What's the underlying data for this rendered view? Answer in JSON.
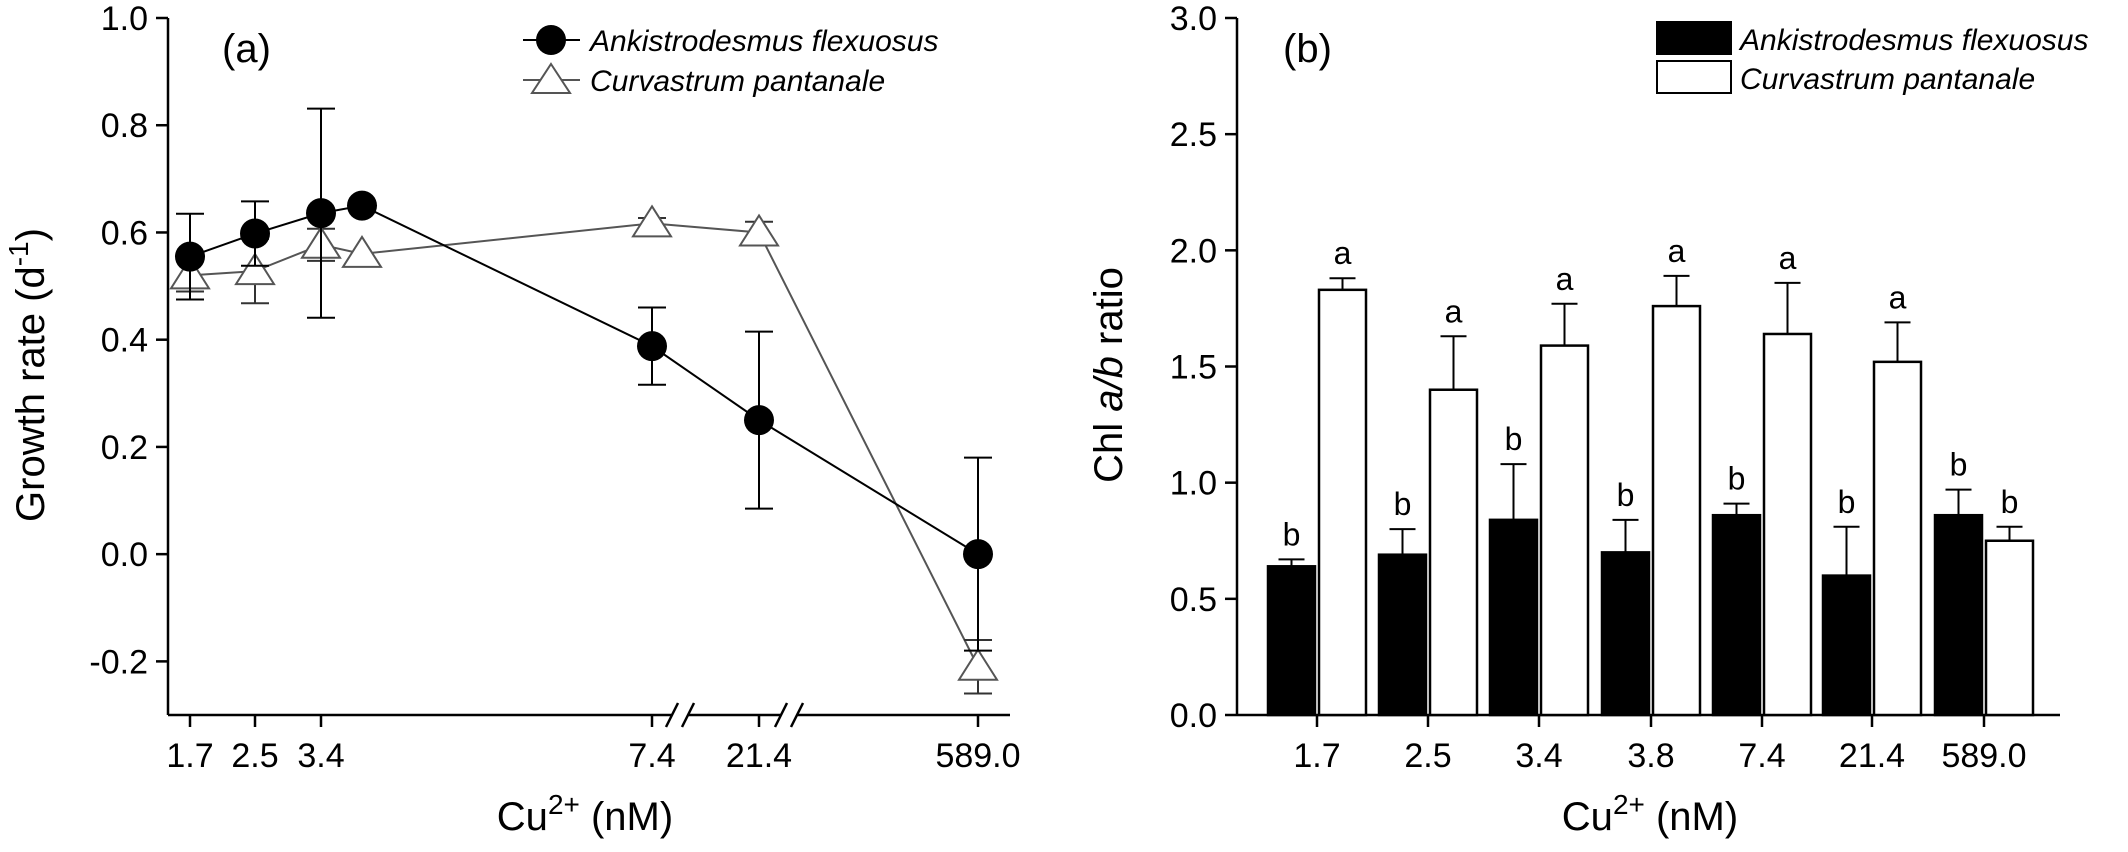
{
  "chart_data": [
    {
      "type": "line",
      "panel_label": "(a)",
      "xlabel_main": "Cu",
      "xlabel_sup": "2+",
      "xlabel_unit": " (nM)",
      "ylabel_main": "Growth rate (d",
      "ylabel_sup": "-1",
      "ylabel_close": ")",
      "ylim": [
        -0.3,
        1.0
      ],
      "yticks": [
        "-0.2",
        "0.0",
        "0.2",
        "0.4",
        "0.6",
        "0.8",
        "1.0"
      ],
      "ytick_values": [
        -0.2,
        0.0,
        0.2,
        0.4,
        0.6,
        0.8,
        1.0
      ],
      "xtick_labels": [
        "1.7",
        "2.5",
        "3.4",
        "7.4",
        "21.4",
        "589.0"
      ],
      "axis_breaks": true,
      "legend_position": "top-right",
      "series": [
        {
          "name": "Ankistrodesmus flexuosus",
          "marker": "filled-circle",
          "color": "#000000",
          "points": [
            {
              "x": "1.7",
              "y": 0.555,
              "err": 0.08
            },
            {
              "x": "2.5",
              "y": 0.598,
              "err": 0.06
            },
            {
              "x": "3.4",
              "y": 0.636,
              "err": 0.195
            },
            {
              "x": "3.8",
              "y": 0.65,
              "err": 0
            },
            {
              "x": "7.4",
              "y": 0.388,
              "err": 0.072
            },
            {
              "x": "21.4",
              "y": 0.25,
              "err": 0.165
            },
            {
              "x": "589.0",
              "y": 0.0,
              "err": 0.18
            }
          ]
        },
        {
          "name": "Curvastrum pantanale",
          "marker": "open-triangle",
          "color": "#555555",
          "points": [
            {
              "x": "1.7",
              "y": 0.52,
              "err": 0.03
            },
            {
              "x": "2.5",
              "y": 0.528,
              "err": 0.06
            },
            {
              "x": "3.4",
              "y": 0.577,
              "err": 0.03
            },
            {
              "x": "3.8",
              "y": 0.56,
              "err": 0
            },
            {
              "x": "7.4",
              "y": 0.617,
              "err": 0.01
            },
            {
              "x": "21.4",
              "y": 0.6,
              "err": 0.02
            },
            {
              "x": "589.0",
              "y": -0.21,
              "err": 0.05
            }
          ]
        }
      ]
    },
    {
      "type": "bar",
      "panel_label": "(b)",
      "xlabel_main": "Cu",
      "xlabel_sup": "2+",
      "xlabel_unit": " (nM)",
      "ylabel_pre": "Chl ",
      "ylabel_italic": "a/b",
      "ylabel_post": " ratio",
      "ylim": [
        0.0,
        3.0
      ],
      "yticks": [
        "0.0",
        "0.5",
        "1.0",
        "1.5",
        "2.0",
        "2.5",
        "3.0"
      ],
      "ytick_values": [
        0.0,
        0.5,
        1.0,
        1.5,
        2.0,
        2.5,
        3.0
      ],
      "categories": [
        "1.7",
        "2.5",
        "3.4",
        "3.8",
        "7.4",
        "21.4",
        "589.0"
      ],
      "legend_position": "top-right",
      "series": [
        {
          "name": "Ankistrodesmus flexuosus",
          "fill": "#000000",
          "values": [
            0.64,
            0.69,
            0.84,
            0.7,
            0.86,
            0.6,
            0.86
          ],
          "errors": [
            0.03,
            0.11,
            0.24,
            0.14,
            0.05,
            0.21,
            0.11
          ],
          "letters": [
            "b",
            "b",
            "b",
            "b",
            "b",
            "b",
            "b"
          ]
        },
        {
          "name": "Curvastrum pantanale",
          "fill": "#ffffff",
          "values": [
            1.83,
            1.4,
            1.59,
            1.76,
            1.64,
            1.52,
            0.75
          ],
          "errors": [
            0.05,
            0.23,
            0.18,
            0.13,
            0.22,
            0.17,
            0.06
          ],
          "letters": [
            "a",
            "a",
            "a",
            "a",
            "a",
            "a",
            "b"
          ]
        }
      ]
    }
  ]
}
